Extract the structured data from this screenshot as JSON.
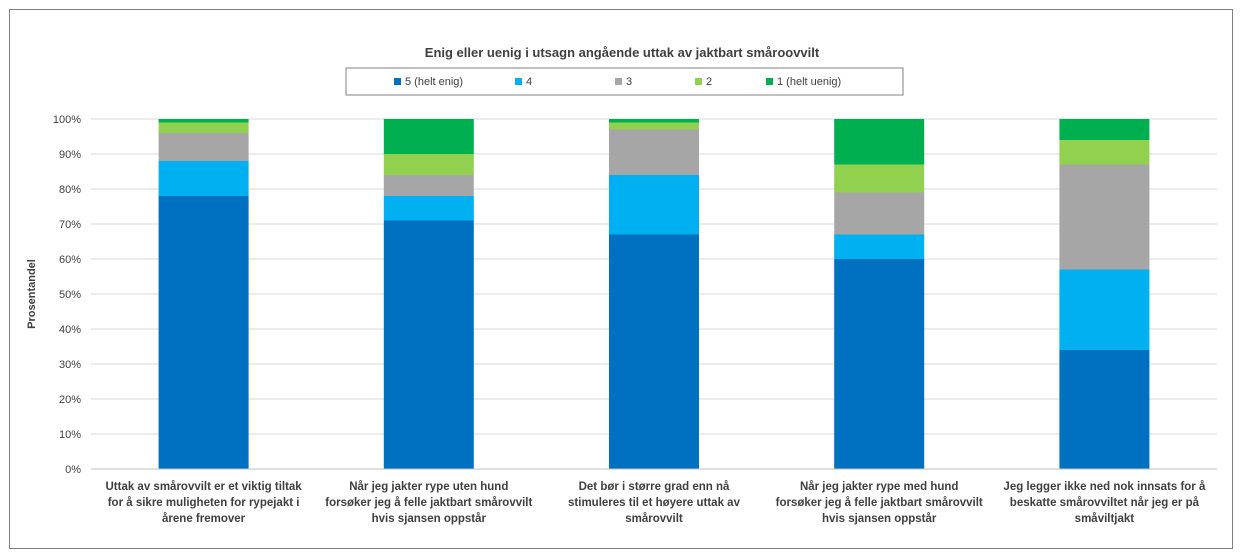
{
  "chart_data": {
    "type": "bar",
    "stacked": true,
    "title": "Enig eller uenig i utsagn angående uttak av jaktbart småroovvilt",
    "ylabel": "Prosentandel",
    "xlabel": "",
    "ylim": [
      0,
      100
    ],
    "yticks": [
      "0%",
      "10%",
      "20%",
      "30%",
      "40%",
      "50%",
      "60%",
      "70%",
      "80%",
      "90%",
      "100%"
    ],
    "grid": true,
    "legend_position": "top",
    "categories": [
      [
        "Uttak av smårovvilt er et viktig tiltak",
        "for å sikre muligheten for rypejakt i",
        "årene fremover"
      ],
      [
        "Når jeg jakter rype uten hund",
        "forsøker jeg å felle jaktbart smårovvilt",
        "hvis sjansen oppstår"
      ],
      [
        "Det bør i større grad enn nå",
        "stimuleres til et høyere uttak av",
        "smårovvilt"
      ],
      [
        "Når jeg jakter rype med hund",
        "forsøker jeg å felle jaktbart smårovvilt",
        "hvis sjansen oppstår"
      ],
      [
        "Jeg legger ikke ned nok innsats for å",
        "beskatte smårovviltet når jeg er på",
        "småviltjakt"
      ]
    ],
    "series": [
      {
        "name": "5 (helt enig)",
        "color": "#0070C0",
        "values": [
          78,
          71,
          67,
          60,
          34
        ]
      },
      {
        "name": "4",
        "color": "#00B0F0",
        "values": [
          10,
          7,
          17,
          7,
          23
        ]
      },
      {
        "name": "3",
        "color": "#A6A6A6",
        "values": [
          8,
          6,
          13,
          12,
          30
        ]
      },
      {
        "name": "2",
        "color": "#92D050",
        "values": [
          3,
          6,
          2,
          8,
          7
        ]
      },
      {
        "name": "1 (helt uenig)",
        "color": "#00B050",
        "values": [
          1,
          10,
          1,
          13,
          6
        ]
      }
    ]
  }
}
